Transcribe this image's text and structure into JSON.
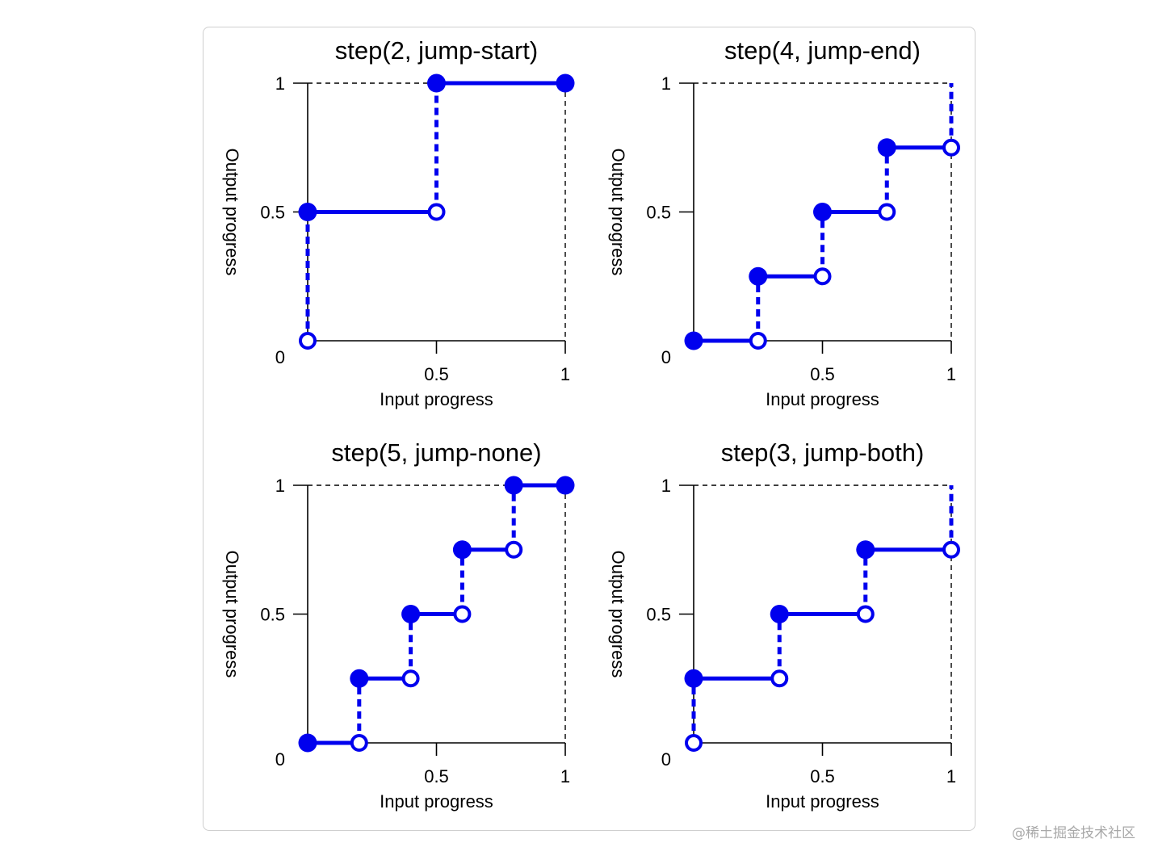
{
  "watermark": "@稀土掘金技术社区",
  "style": {
    "step_color": "#0000ee",
    "axis_color": "#000000"
  },
  "chart_data": [
    {
      "type": "line",
      "title": "step(2, jump-start)",
      "xlabel": "Input progress",
      "ylabel": "Output progress",
      "xlim": [
        0,
        1
      ],
      "ylim": [
        0,
        1
      ],
      "xticks": [
        {
          "v": 0.5,
          "label": "0.5"
        },
        {
          "v": 1,
          "label": "1"
        }
      ],
      "yticks": [
        {
          "v": 0,
          "label": "0"
        },
        {
          "v": 0.5,
          "label": "0.5"
        },
        {
          "v": 1,
          "label": "1"
        }
      ],
      "segments": [
        [
          0,
          0.5,
          0.5
        ],
        [
          0.5,
          1,
          1
        ]
      ],
      "jumps": [
        [
          0,
          0,
          0.5
        ],
        [
          0.5,
          0.5,
          1
        ]
      ],
      "filled_points": [
        [
          0,
          0.5
        ],
        [
          0.5,
          1
        ],
        [
          1,
          1
        ]
      ],
      "open_points": [
        [
          0,
          0
        ],
        [
          0.5,
          0.5
        ]
      ]
    },
    {
      "type": "line",
      "title": "step(4, jump-end)",
      "xlabel": "Input progress",
      "ylabel": "Output progress",
      "xlim": [
        0,
        1
      ],
      "ylim": [
        0,
        1
      ],
      "xticks": [
        {
          "v": 0.5,
          "label": "0.5"
        },
        {
          "v": 1,
          "label": "1"
        }
      ],
      "yticks": [
        {
          "v": 0,
          "label": "0"
        },
        {
          "v": 0.5,
          "label": "0.5"
        },
        {
          "v": 1,
          "label": "1"
        }
      ],
      "segments": [
        [
          0,
          0.25,
          0
        ],
        [
          0.25,
          0.5,
          0.25
        ],
        [
          0.5,
          0.75,
          0.5
        ],
        [
          0.75,
          1,
          0.75
        ]
      ],
      "jumps": [
        [
          0.25,
          0,
          0.25
        ],
        [
          0.5,
          0.25,
          0.5
        ],
        [
          0.75,
          0.5,
          0.75
        ],
        [
          1,
          0.75,
          1
        ]
      ],
      "filled_points": [
        [
          0,
          0
        ],
        [
          0.25,
          0.25
        ],
        [
          0.5,
          0.5
        ],
        [
          0.75,
          0.75
        ]
      ],
      "open_points": [
        [
          0.25,
          0
        ],
        [
          0.5,
          0.25
        ],
        [
          0.75,
          0.5
        ],
        [
          1,
          0.75
        ]
      ]
    },
    {
      "type": "line",
      "title": "step(5, jump-none)",
      "xlabel": "Input progress",
      "ylabel": "Output progress",
      "xlim": [
        0,
        1
      ],
      "ylim": [
        0,
        1
      ],
      "xticks": [
        {
          "v": 0.5,
          "label": "0.5"
        },
        {
          "v": 1,
          "label": "1"
        }
      ],
      "yticks": [
        {
          "v": 0,
          "label": "0"
        },
        {
          "v": 0.5,
          "label": "0.5"
        },
        {
          "v": 1,
          "label": "1"
        }
      ],
      "segments": [
        [
          0,
          0.2,
          0
        ],
        [
          0.2,
          0.4,
          0.25
        ],
        [
          0.4,
          0.6,
          0.5
        ],
        [
          0.6,
          0.8,
          0.75
        ],
        [
          0.8,
          1,
          1
        ]
      ],
      "jumps": [
        [
          0.2,
          0,
          0.25
        ],
        [
          0.4,
          0.25,
          0.5
        ],
        [
          0.6,
          0.5,
          0.75
        ],
        [
          0.8,
          0.75,
          1
        ]
      ],
      "filled_points": [
        [
          0,
          0
        ],
        [
          0.2,
          0.25
        ],
        [
          0.4,
          0.5
        ],
        [
          0.6,
          0.75
        ],
        [
          0.8,
          1
        ],
        [
          1,
          1
        ]
      ],
      "open_points": [
        [
          0.2,
          0
        ],
        [
          0.4,
          0.25
        ],
        [
          0.6,
          0.5
        ],
        [
          0.8,
          0.75
        ]
      ]
    },
    {
      "type": "line",
      "title": "step(3, jump-both)",
      "xlabel": "Input progress",
      "ylabel": "Output progress",
      "xlim": [
        0,
        1
      ],
      "ylim": [
        0,
        1
      ],
      "xticks": [
        {
          "v": 0.5,
          "label": "0.5"
        },
        {
          "v": 1,
          "label": "1"
        }
      ],
      "yticks": [
        {
          "v": 0,
          "label": "0"
        },
        {
          "v": 0.5,
          "label": "0.5"
        },
        {
          "v": 1,
          "label": "1"
        }
      ],
      "segments": [
        [
          0,
          0.333,
          0.25
        ],
        [
          0.333,
          0.667,
          0.5
        ],
        [
          0.667,
          1,
          0.75
        ]
      ],
      "jumps": [
        [
          0,
          0,
          0.25
        ],
        [
          0.333,
          0.25,
          0.5
        ],
        [
          0.667,
          0.5,
          0.75
        ],
        [
          1,
          0.75,
          1
        ]
      ],
      "filled_points": [
        [
          0,
          0.25
        ],
        [
          0.333,
          0.5
        ],
        [
          0.667,
          0.75
        ]
      ],
      "open_points": [
        [
          0,
          0
        ],
        [
          0.333,
          0.25
        ],
        [
          0.667,
          0.5
        ],
        [
          1,
          0.75
        ]
      ]
    }
  ]
}
